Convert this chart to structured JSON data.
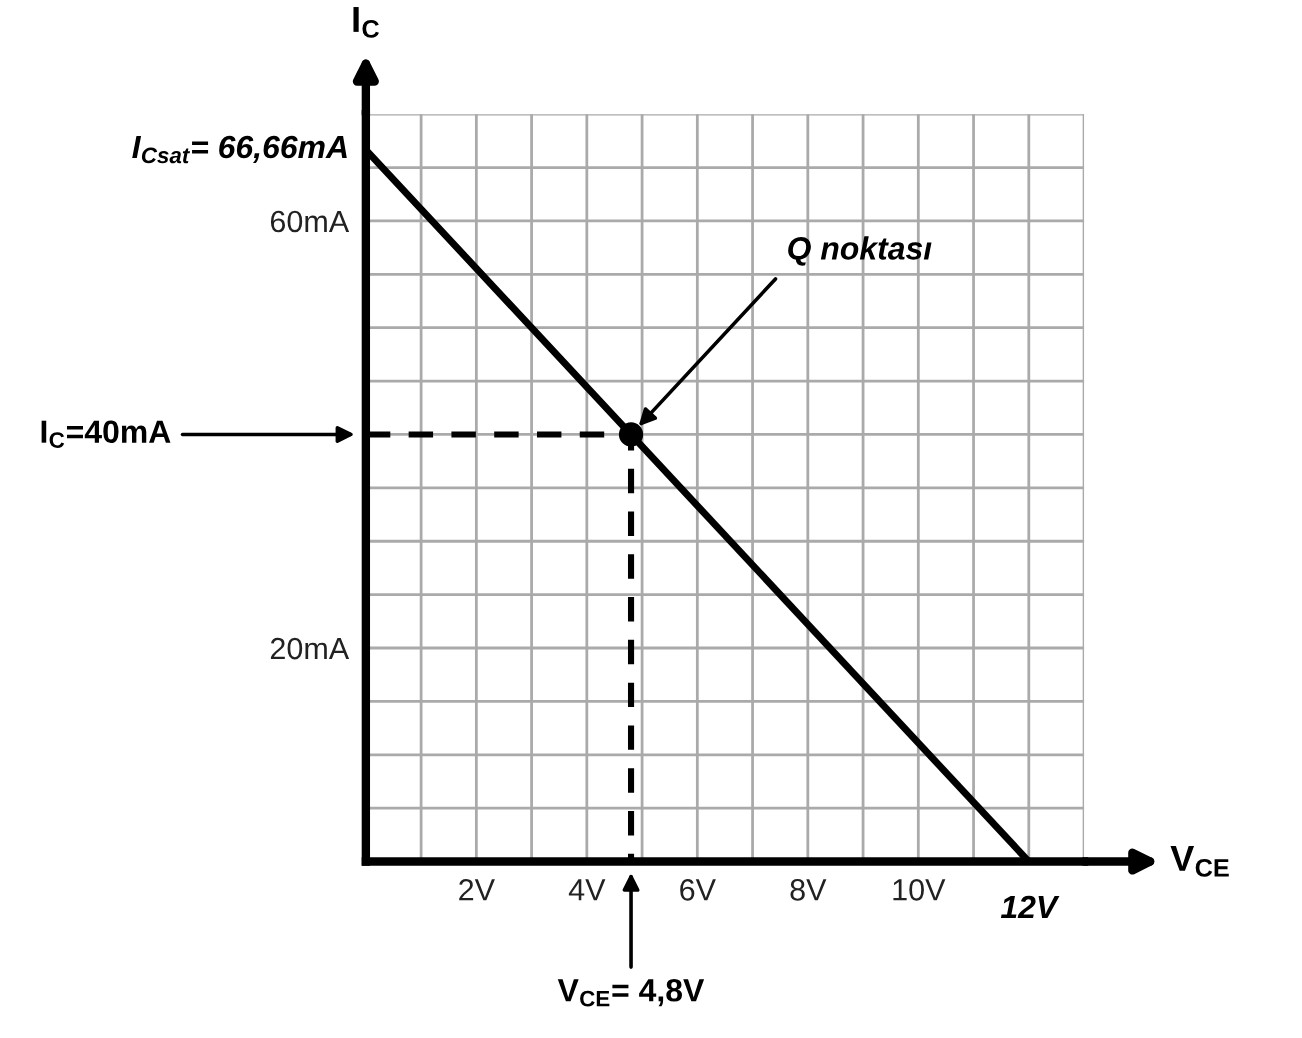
{
  "chart_data": {
    "type": "line",
    "xlabel": "V$_{CE}$",
    "ylabel": "I$_{C}$",
    "xlim": [
      0,
      13
    ],
    "ylim": [
      0,
      70
    ],
    "xticks": [
      {
        "value": 0,
        "label": null
      },
      {
        "value": 1,
        "label": null
      },
      {
        "value": 2,
        "label": "2V"
      },
      {
        "value": 3,
        "label": null
      },
      {
        "value": 4,
        "label": "4V"
      },
      {
        "value": 5,
        "label": null
      },
      {
        "value": 6,
        "label": "6V"
      },
      {
        "value": 7,
        "label": null
      },
      {
        "value": 8,
        "label": "8V"
      },
      {
        "value": 9,
        "label": null
      },
      {
        "value": 10,
        "label": "10V"
      },
      {
        "value": 11,
        "label": null
      },
      {
        "value": 12,
        "label": null
      },
      {
        "value": 13,
        "label": null
      }
    ],
    "yticks": [
      {
        "value": 0,
        "label": null
      },
      {
        "value": 5,
        "label": null
      },
      {
        "value": 10,
        "label": null
      },
      {
        "value": 15,
        "label": null
      },
      {
        "value": 20,
        "label": "20mA"
      },
      {
        "value": 25,
        "label": null
      },
      {
        "value": 30,
        "label": null
      },
      {
        "value": 35,
        "label": null
      },
      {
        "value": 40,
        "label": null
      },
      {
        "value": 45,
        "label": null
      },
      {
        "value": 50,
        "label": null
      },
      {
        "value": 55,
        "label": null
      },
      {
        "value": 60,
        "label": "60mA"
      },
      {
        "value": 65,
        "label": null
      },
      {
        "value": 70,
        "label": null
      }
    ],
    "grid": true,
    "series": [
      {
        "type": "line",
        "color": "#000000",
        "x": [
          0,
          12
        ],
        "values": [
          66.66,
          0
        ],
        "line_style": "solid"
      },
      {
        "type": "line",
        "color": "#000000",
        "x": [
          0,
          4.8,
          4.8
        ],
        "values": [
          40,
          40,
          0
        ],
        "line_style": "dashed"
      },
      {
        "type": "scatter",
        "color": "#000000",
        "x": [
          4.8
        ],
        "values": [
          40
        ],
        "marker": "circle"
      }
    ],
    "annotations": [
      {
        "text": "I$_{Csat}$= 66,66mA",
        "x": 0,
        "y": 66.66
      },
      {
        "text": "I$_{C}$=40mA",
        "x": 0,
        "y": 40
      },
      {
        "text": "Q noktası",
        "x": 4.8,
        "y": 40
      },
      {
        "text": "V$_{CE}$= 4,8V",
        "x": 4.8,
        "y": 0
      },
      {
        "text": "12V",
        "x": 12,
        "y": 0
      }
    ]
  }
}
